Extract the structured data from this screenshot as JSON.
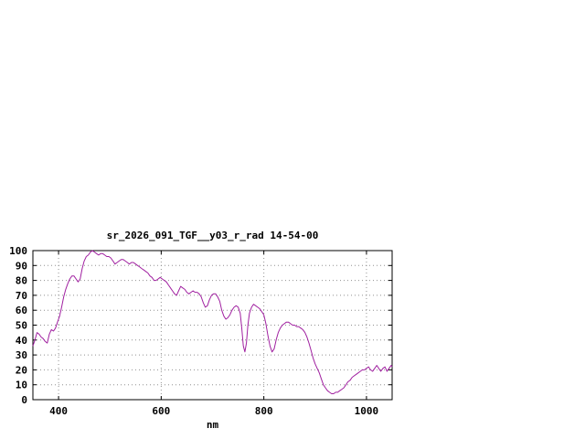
{
  "colors": {
    "background": "#ffffff",
    "axis": "#000000",
    "grid": "#909090",
    "series": "#a020a0"
  },
  "chart_data": {
    "type": "line",
    "title": "sr_2026_091_TGF__y03_r_rad 14-54-00",
    "xlabel": "nm",
    "ylabel": "",
    "xlim": [
      350,
      1050
    ],
    "ylim": [
      0,
      100
    ],
    "xticks": [
      400,
      600,
      800,
      1000
    ],
    "yticks": [
      0,
      10,
      20,
      30,
      40,
      50,
      60,
      70,
      80,
      90,
      100
    ],
    "grid": true,
    "legend_position": "none",
    "series": [
      {
        "name": "sr_2026_091_TGF__y03_r_rad",
        "color": "#a020a0",
        "points": [
          [
            350,
            36
          ],
          [
            354,
            40
          ],
          [
            358,
            45
          ],
          [
            362,
            44
          ],
          [
            366,
            42
          ],
          [
            370,
            41
          ],
          [
            374,
            39
          ],
          [
            378,
            38
          ],
          [
            382,
            44
          ],
          [
            386,
            47
          ],
          [
            390,
            46
          ],
          [
            394,
            48
          ],
          [
            398,
            52
          ],
          [
            402,
            56
          ],
          [
            406,
            62
          ],
          [
            410,
            69
          ],
          [
            414,
            74
          ],
          [
            418,
            78
          ],
          [
            422,
            81
          ],
          [
            426,
            83
          ],
          [
            430,
            83
          ],
          [
            434,
            81
          ],
          [
            438,
            79
          ],
          [
            442,
            81
          ],
          [
            446,
            88
          ],
          [
            450,
            93
          ],
          [
            454,
            96
          ],
          [
            458,
            97
          ],
          [
            462,
            99
          ],
          [
            466,
            100
          ],
          [
            470,
            99
          ],
          [
            474,
            98
          ],
          [
            478,
            97
          ],
          [
            482,
            98
          ],
          [
            486,
            98
          ],
          [
            490,
            97
          ],
          [
            494,
            96
          ],
          [
            498,
            96
          ],
          [
            502,
            95
          ],
          [
            506,
            93
          ],
          [
            510,
            91
          ],
          [
            514,
            92
          ],
          [
            518,
            93
          ],
          [
            522,
            94
          ],
          [
            526,
            94
          ],
          [
            530,
            93
          ],
          [
            534,
            92
          ],
          [
            538,
            91
          ],
          [
            542,
            92
          ],
          [
            546,
            92
          ],
          [
            550,
            91
          ],
          [
            554,
            90
          ],
          [
            558,
            89
          ],
          [
            562,
            88
          ],
          [
            566,
            87
          ],
          [
            570,
            86
          ],
          [
            574,
            85
          ],
          [
            578,
            83
          ],
          [
            582,
            82
          ],
          [
            586,
            80
          ],
          [
            590,
            80
          ],
          [
            594,
            81
          ],
          [
            598,
            82
          ],
          [
            602,
            81
          ],
          [
            606,
            80
          ],
          [
            610,
            79
          ],
          [
            614,
            77
          ],
          [
            618,
            75
          ],
          [
            622,
            73
          ],
          [
            626,
            71
          ],
          [
            630,
            70
          ],
          [
            634,
            73
          ],
          [
            638,
            76
          ],
          [
            642,
            75
          ],
          [
            646,
            74
          ],
          [
            650,
            72
          ],
          [
            654,
            71
          ],
          [
            658,
            72
          ],
          [
            662,
            73
          ],
          [
            666,
            72
          ],
          [
            670,
            72
          ],
          [
            674,
            71
          ],
          [
            678,
            69
          ],
          [
            682,
            65
          ],
          [
            686,
            62
          ],
          [
            690,
            63
          ],
          [
            694,
            67
          ],
          [
            698,
            70
          ],
          [
            702,
            71
          ],
          [
            706,
            71
          ],
          [
            710,
            69
          ],
          [
            714,
            66
          ],
          [
            718,
            60
          ],
          [
            722,
            56
          ],
          [
            726,
            54
          ],
          [
            730,
            55
          ],
          [
            734,
            57
          ],
          [
            738,
            60
          ],
          [
            742,
            62
          ],
          [
            746,
            63
          ],
          [
            750,
            62
          ],
          [
            754,
            58
          ],
          [
            757,
            48
          ],
          [
            760,
            36
          ],
          [
            763,
            32
          ],
          [
            766,
            38
          ],
          [
            769,
            50
          ],
          [
            772,
            58
          ],
          [
            776,
            62
          ],
          [
            780,
            64
          ],
          [
            784,
            63
          ],
          [
            788,
            62
          ],
          [
            792,
            61
          ],
          [
            796,
            59
          ],
          [
            800,
            57
          ],
          [
            804,
            51
          ],
          [
            808,
            43
          ],
          [
            812,
            36
          ],
          [
            816,
            32
          ],
          [
            820,
            34
          ],
          [
            824,
            40
          ],
          [
            828,
            45
          ],
          [
            832,
            48
          ],
          [
            836,
            50
          ],
          [
            840,
            51
          ],
          [
            844,
            52
          ],
          [
            848,
            52
          ],
          [
            852,
            51
          ],
          [
            856,
            50
          ],
          [
            860,
            50
          ],
          [
            864,
            49
          ],
          [
            868,
            49
          ],
          [
            872,
            48
          ],
          [
            876,
            47
          ],
          [
            880,
            45
          ],
          [
            884,
            42
          ],
          [
            888,
            38
          ],
          [
            892,
            33
          ],
          [
            896,
            28
          ],
          [
            900,
            24
          ],
          [
            904,
            21
          ],
          [
            908,
            18
          ],
          [
            912,
            14
          ],
          [
            916,
            10
          ],
          [
            920,
            8
          ],
          [
            924,
            6
          ],
          [
            928,
            5
          ],
          [
            932,
            4
          ],
          [
            936,
            4
          ],
          [
            940,
            5
          ],
          [
            944,
            5
          ],
          [
            948,
            6
          ],
          [
            952,
            7
          ],
          [
            956,
            8
          ],
          [
            960,
            10
          ],
          [
            964,
            12
          ],
          [
            968,
            13
          ],
          [
            972,
            15
          ],
          [
            976,
            16
          ],
          [
            980,
            17
          ],
          [
            984,
            18
          ],
          [
            988,
            19
          ],
          [
            992,
            20
          ],
          [
            996,
            20
          ],
          [
            1000,
            21
          ],
          [
            1004,
            22
          ],
          [
            1008,
            20
          ],
          [
            1012,
            19
          ],
          [
            1016,
            21
          ],
          [
            1020,
            23
          ],
          [
            1024,
            21
          ],
          [
            1028,
            19
          ],
          [
            1032,
            21
          ],
          [
            1036,
            22
          ],
          [
            1040,
            19
          ],
          [
            1044,
            21
          ],
          [
            1048,
            23
          ],
          [
            1050,
            22
          ]
        ]
      }
    ]
  }
}
